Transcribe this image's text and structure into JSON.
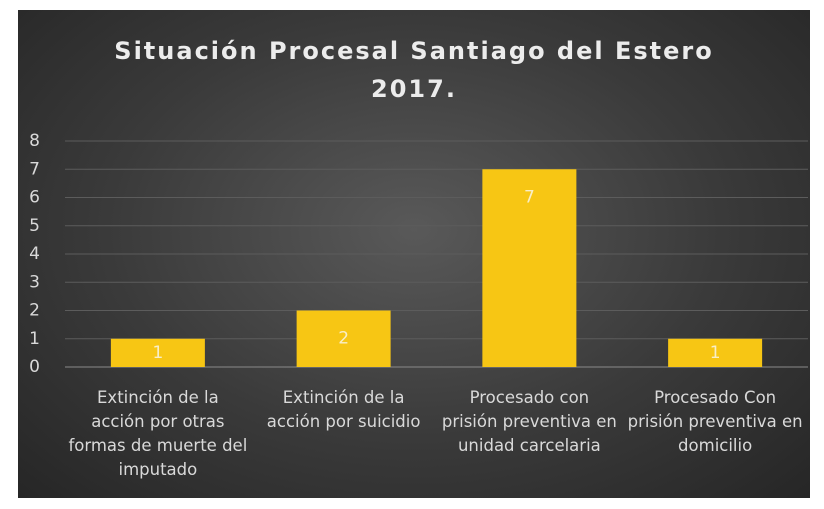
{
  "chart_data": {
    "type": "bar",
    "title": "Situación Procesal Santiago del Estero 2017.",
    "categories": [
      "Extinción de la acción por otras formas de muerte del imputado",
      "Extinción de la acción por suicidio",
      "Procesado con prisión preventiva en unidad carcelaria",
      "Procesado Con prisión preventiva en domicilio"
    ],
    "values": [
      1,
      2,
      7,
      1
    ],
    "color": "#f7c614",
    "ylim": [
      0,
      8
    ],
    "yticks": [
      0,
      1,
      2,
      3,
      4,
      5,
      6,
      7,
      8
    ],
    "grid": true
  }
}
